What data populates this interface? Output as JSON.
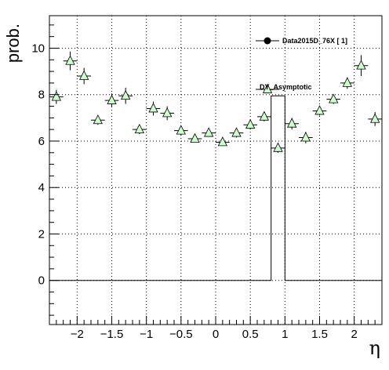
{
  "chart_data": {
    "type": "scatter",
    "xlabel": "η",
    "ylabel": "prob.",
    "xlim": [
      -2.4,
      2.4
    ],
    "ylim": [
      -1.9,
      11.4
    ],
    "grid": true,
    "legend_position": "top-right",
    "x_ticks": [
      -2,
      -1.5,
      -1,
      -0.5,
      0,
      0.5,
      1,
      1.5,
      2
    ],
    "x_tick_labels": [
      "−2",
      "−1.5",
      "−1",
      "−0.5",
      "0",
      "0.5",
      "1",
      "1.5",
      "2"
    ],
    "y_ticks": [
      0,
      2,
      4,
      6,
      8,
      10
    ],
    "y_tick_labels": [
      "0",
      "2",
      "4",
      "6",
      "8",
      "10"
    ],
    "series": [
      {
        "name": "DY_Asymptotic",
        "marker": "triangle",
        "color": "#ccffcc",
        "x": [
          -2.3,
          -2.1,
          -1.9,
          -1.7,
          -1.5,
          -1.3,
          -1.1,
          -0.9,
          -0.7,
          -0.5,
          -0.3,
          -0.1,
          0.1,
          0.3,
          0.5,
          0.7,
          0.9,
          1.1,
          1.3,
          1.5,
          1.7,
          1.9,
          2.1,
          2.3
        ],
        "y": [
          7.9,
          9.45,
          8.8,
          6.9,
          7.75,
          7.95,
          6.5,
          7.4,
          7.2,
          6.45,
          6.1,
          6.35,
          5.95,
          6.35,
          6.7,
          7.05,
          5.7,
          6.75,
          6.15,
          7.3,
          7.8,
          8.5,
          9.25,
          6.95
        ],
        "yerr": [
          0.3,
          0.4,
          0.35,
          0.2,
          0.3,
          0.35,
          0.2,
          0.3,
          0.3,
          0.2,
          0.1,
          0.15,
          0.15,
          0.2,
          0.2,
          0.2,
          0.2,
          0.25,
          0.25,
          0.2,
          0.2,
          0.25,
          0.45,
          0.3
        ],
        "xerr": 0.1
      },
      {
        "name": "Data2015D_76X [        1]",
        "marker": "circle",
        "color": "#000000",
        "type": "step",
        "edges": [
          -2.4,
          0.8,
          1.0,
          2.4
        ],
        "values": [
          0,
          7.95,
          0
        ]
      }
    ]
  }
}
